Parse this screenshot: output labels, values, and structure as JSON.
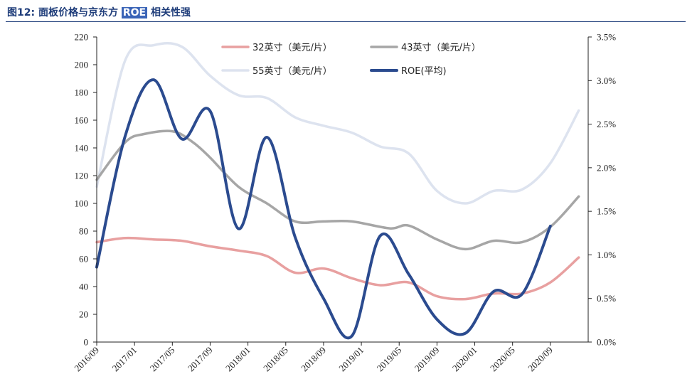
{
  "header": {
    "title_prefix": "图12:",
    "title_main": "面板价格与京东方",
    "title_highlight": "ROE",
    "title_suffix": "相关性强"
  },
  "colors": {
    "title": "#1f3d7a",
    "s32": "#e8a0a0",
    "s43": "#a6a6a6",
    "s55": "#dde3ef",
    "roe": "#2b4b8f",
    "axis": "#222222"
  },
  "chart_data": {
    "type": "line",
    "title": "",
    "xlabel": "",
    "ylabel": "",
    "legend_position": "top",
    "grid": false,
    "y_left": {
      "range": [
        0,
        220
      ],
      "ticks": [
        "0",
        "20",
        "40",
        "60",
        "80",
        "100",
        "120",
        "140",
        "160",
        "180",
        "200",
        "220"
      ]
    },
    "y_right": {
      "range": [
        0,
        3.5
      ],
      "ticks": [
        "0.0%",
        "0.5%",
        "1.0%",
        "1.5%",
        "2.0%",
        "2.5%",
        "3.0%",
        "3.5%"
      ]
    },
    "x_range": [
      "2016/09",
      "2021/01"
    ],
    "x_ticks": [
      "2016/09",
      "2017/01",
      "2017/05",
      "2017/09",
      "2018/01",
      "2018/05",
      "2018/09",
      "2019/01",
      "2019/05",
      "2019/09",
      "2020/01",
      "2020/05",
      "2020/09"
    ],
    "series": [
      {
        "name": "55英寸（美元/片）",
        "axis": "left",
        "color": "#dde3ef",
        "x": [
          "2016/09",
          "2016/12",
          "2017/03",
          "2017/06",
          "2017/09",
          "2017/12",
          "2018/03",
          "2018/06",
          "2018/09",
          "2018/12",
          "2019/03",
          "2019/06",
          "2019/09",
          "2019/12",
          "2020/03",
          "2020/06",
          "2020/09",
          "2020/12"
        ],
        "values": [
          112,
          203,
          214,
          213,
          192,
          178,
          176,
          162,
          156,
          151,
          141,
          136,
          109,
          100,
          109,
          110,
          129,
          167
        ]
      },
      {
        "name": "43英寸（美元/片）",
        "axis": "left",
        "color": "#a6a6a6",
        "x": [
          "2016/09",
          "2016/12",
          "2017/02",
          "2017/05",
          "2017/07",
          "2017/09",
          "2017/12",
          "2018/03",
          "2018/06",
          "2018/09",
          "2018/12",
          "2019/04",
          "2019/06",
          "2019/09",
          "2019/12",
          "2020/03",
          "2020/06",
          "2020/09",
          "2020/12"
        ],
        "values": [
          117,
          144,
          150,
          152,
          145,
          133,
          112,
          100,
          87,
          87,
          87,
          82,
          84,
          74,
          67,
          73,
          72,
          83,
          105
        ]
      },
      {
        "name": "32英寸（美元/片）",
        "axis": "left",
        "color": "#e8a0a0",
        "x": [
          "2016/09",
          "2016/12",
          "2017/03",
          "2017/06",
          "2017/09",
          "2017/12",
          "2018/03",
          "2018/06",
          "2018/09",
          "2018/12",
          "2019/03",
          "2019/06",
          "2019/09",
          "2019/12",
          "2020/03",
          "2020/06",
          "2020/09",
          "2020/12"
        ],
        "values": [
          72,
          75,
          74,
          73,
          69,
          66,
          62,
          50,
          53,
          46,
          41,
          43,
          33,
          31,
          35,
          35,
          43,
          61
        ]
      },
      {
        "name": "ROE(平均)",
        "axis": "right",
        "color": "#2b4b8f",
        "x": [
          "2016/09",
          "2016/12",
          "2017/03",
          "2017/06",
          "2017/09",
          "2017/12",
          "2018/03",
          "2018/06",
          "2018/09",
          "2018/12",
          "2019/03",
          "2019/06",
          "2019/09",
          "2019/12",
          "2020/03",
          "2020/06",
          "2020/09"
        ],
        "values": [
          0.86,
          2.36,
          3.01,
          2.33,
          2.65,
          1.3,
          2.35,
          1.2,
          0.5,
          0.07,
          1.22,
          0.78,
          0.26,
          0.1,
          0.58,
          0.55,
          1.33
        ]
      }
    ],
    "legend_order": [
      "32英寸（美元/片）",
      "43英寸（美元/片）",
      "55英寸（美元/片）",
      "ROE(平均)"
    ]
  }
}
